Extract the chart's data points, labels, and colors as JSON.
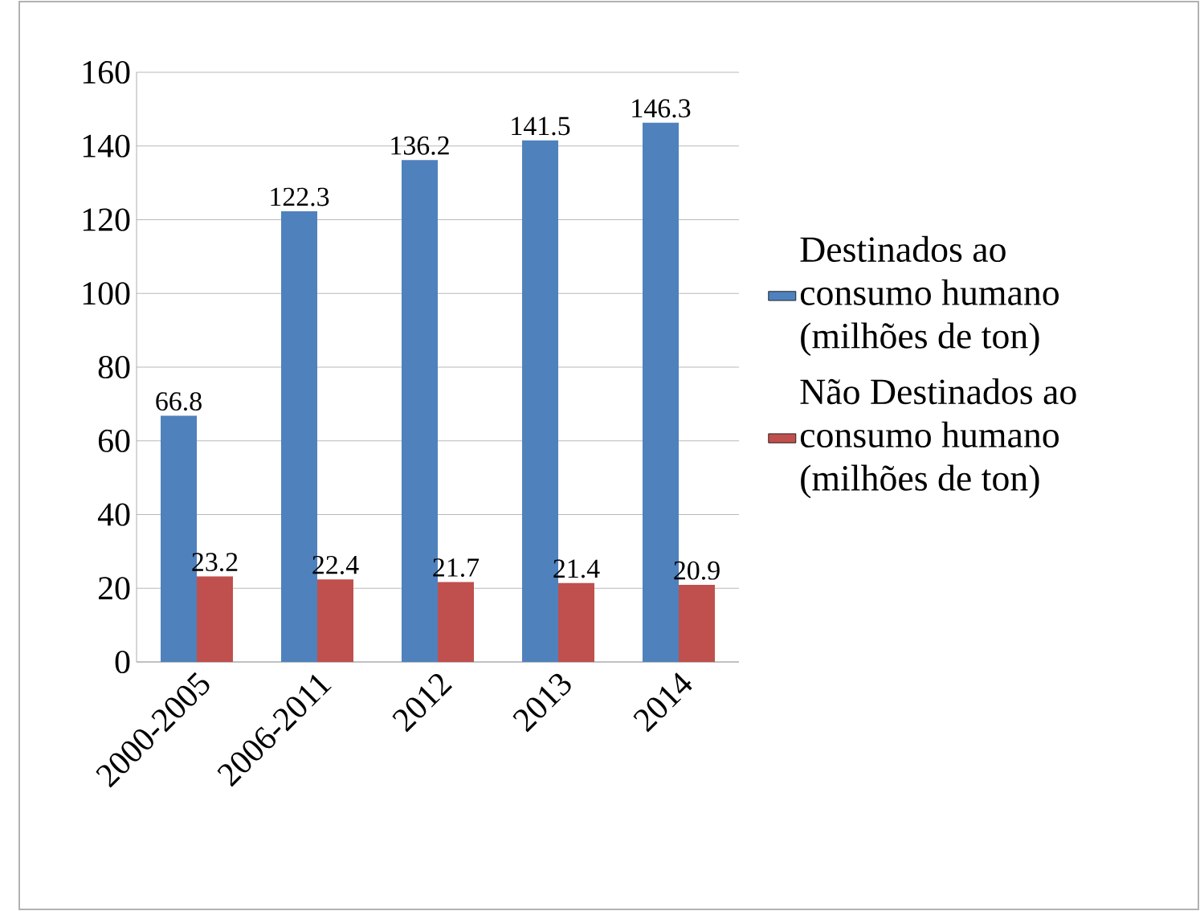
{
  "chart_data": {
    "type": "bar",
    "categories": [
      "2000-2005",
      "2006-2011",
      "2012",
      "2013",
      "2014"
    ],
    "series": [
      {
        "name": "Destinados ao consumo humano (milhões de ton)",
        "color": "#4f81bd",
        "values": [
          66.8,
          122.3,
          136.2,
          141.5,
          146.3
        ]
      },
      {
        "name": "Não Destinados ao consumo humano (milhões de ton)",
        "color": "#c0504d",
        "values": [
          23.2,
          22.4,
          21.7,
          21.4,
          20.9
        ]
      }
    ],
    "ylim": [
      0,
      160
    ],
    "yticks": [
      0,
      20,
      40,
      60,
      80,
      100,
      120,
      140,
      160
    ],
    "grid": "y",
    "legend": "right",
    "data_labels": true
  }
}
